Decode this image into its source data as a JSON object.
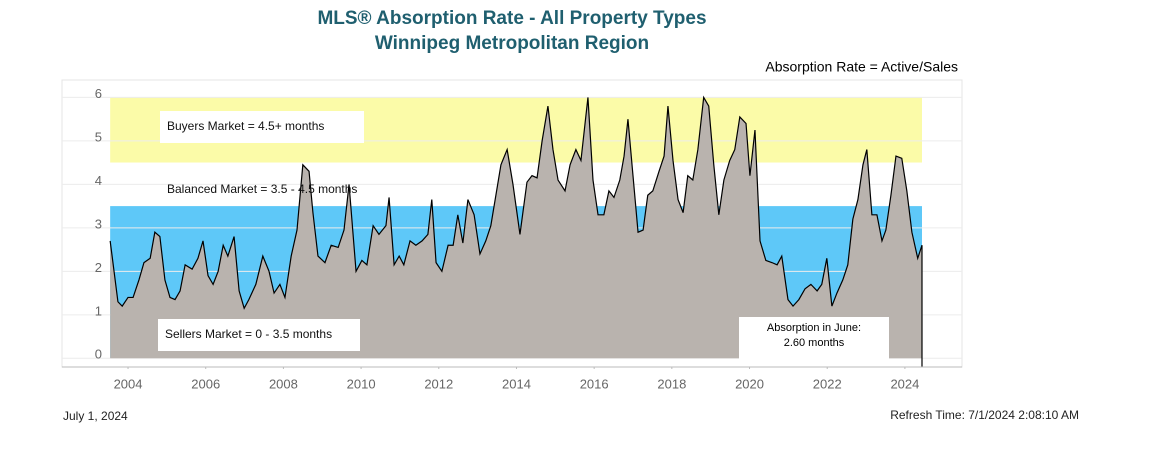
{
  "chart_data": {
    "type": "area",
    "title": "MLS® Absorption Rate - All Property Types",
    "subtitle": "Winnipeg Metropolitan Region",
    "note": "Absorption Rate = Active/Sales",
    "date": "July 1, 2024",
    "refresh": "Refresh Time: 7/1/2024 2:08:10 AM",
    "color": "#b9b3ae",
    "line_color": "#000000",
    "xlim": [
      2002.3,
      2025.47
    ],
    "xticks": [
      2004,
      2006,
      2008,
      2010,
      2012,
      2014,
      2016,
      2018,
      2020,
      2022,
      2024
    ],
    "ylim": [
      -0.2,
      6.4
    ],
    "yticks": [
      0,
      1,
      2,
      3,
      4,
      5,
      6
    ],
    "grid": true,
    "bands": [
      {
        "label": "Buyers Market = 4.5+ months",
        "from": 4.5,
        "to": 6,
        "color": "#fbfba8"
      },
      {
        "label": "Balanced Market = 3.5 - 4.5 months",
        "from": 3.5,
        "to": 4.5,
        "color": "#ffffff"
      },
      {
        "label": "Sellers Market = 0 - 3.5 months",
        "from": 0,
        "to": 3.5,
        "color": "#5ec8f8"
      }
    ],
    "callout": [
      "Absorption in June:",
      "2.60 months"
    ],
    "x": [
      2003.54,
      2003.74,
      2003.85,
      2004.0,
      2004.13,
      2004.28,
      2004.41,
      2004.57,
      2004.69,
      2004.82,
      2004.95,
      2005.08,
      2005.21,
      2005.34,
      2005.47,
      2005.65,
      2005.8,
      2005.93,
      2006.06,
      2006.19,
      2006.32,
      2006.45,
      2006.57,
      2006.73,
      2006.86,
      2006.99,
      2007.11,
      2007.29,
      2007.47,
      2007.63,
      2007.76,
      2007.91,
      2008.04,
      2008.2,
      2008.35,
      2008.5,
      2008.66,
      2008.76,
      2008.89,
      2009.07,
      2009.23,
      2009.41,
      2009.56,
      2009.69,
      2009.87,
      2010.02,
      2010.15,
      2010.31,
      2010.46,
      2010.64,
      2010.72,
      2010.85,
      2010.98,
      2011.1,
      2011.26,
      2011.41,
      2011.57,
      2011.72,
      2011.82,
      2011.93,
      2012.08,
      2012.24,
      2012.37,
      2012.49,
      2012.62,
      2012.75,
      2012.91,
      2013.06,
      2013.21,
      2013.34,
      2013.47,
      2013.6,
      2013.76,
      2013.91,
      2014.09,
      2014.27,
      2014.4,
      2014.53,
      2014.66,
      2014.81,
      2014.94,
      2015.07,
      2015.25,
      2015.38,
      2015.53,
      2015.66,
      2015.84,
      2015.97,
      2016.1,
      2016.25,
      2016.38,
      2016.51,
      2016.66,
      2016.77,
      2016.87,
      2017.0,
      2017.13,
      2017.26,
      2017.38,
      2017.51,
      2017.67,
      2017.8,
      2017.9,
      2018.03,
      2018.16,
      2018.29,
      2018.41,
      2018.54,
      2018.67,
      2018.82,
      2018.95,
      2019.08,
      2019.21,
      2019.34,
      2019.49,
      2019.62,
      2019.75,
      2019.91,
      2020.01,
      2020.14,
      2020.27,
      2020.42,
      2020.58,
      2020.71,
      2020.83,
      2020.99,
      2021.12,
      2021.27,
      2021.43,
      2021.58,
      2021.74,
      2021.86,
      2021.99,
      2022.12,
      2022.25,
      2022.4,
      2022.53,
      2022.66,
      2022.79,
      2022.92,
      2023.02,
      2023.15,
      2023.28,
      2023.41,
      2023.51,
      2023.64,
      2023.77,
      2023.92,
      2024.05,
      2024.18,
      2024.33,
      2024.44
    ],
    "values": [
      2.7,
      1.3,
      1.2,
      1.4,
      1.4,
      1.8,
      2.2,
      2.3,
      2.9,
      2.8,
      1.8,
      1.4,
      1.35,
      1.55,
      2.15,
      2.05,
      2.3,
      2.7,
      1.9,
      1.7,
      2.0,
      2.6,
      2.35,
      2.8,
      1.55,
      1.15,
      1.35,
      1.7,
      2.35,
      2.0,
      1.5,
      1.7,
      1.4,
      2.35,
      2.95,
      4.45,
      4.3,
      3.35,
      2.35,
      2.2,
      2.6,
      2.55,
      2.95,
      4.0,
      2.0,
      2.25,
      2.15,
      3.05,
      2.85,
      3.05,
      3.7,
      2.15,
      2.35,
      2.15,
      2.7,
      2.6,
      2.7,
      2.85,
      3.65,
      2.2,
      2.0,
      2.6,
      2.6,
      3.3,
      2.65,
      3.65,
      3.3,
      2.4,
      2.7,
      3.05,
      3.75,
      4.45,
      4.8,
      4.0,
      2.85,
      4.05,
      4.2,
      4.15,
      5.0,
      5.8,
      4.8,
      4.1,
      3.85,
      4.45,
      4.8,
      4.55,
      6.0,
      4.1,
      3.3,
      3.3,
      3.85,
      3.7,
      4.1,
      4.65,
      5.5,
      4.2,
      2.9,
      2.95,
      3.75,
      3.85,
      4.3,
      4.65,
      5.8,
      4.55,
      3.65,
      3.35,
      4.2,
      4.1,
      4.8,
      6.0,
      5.8,
      4.45,
      3.3,
      4.1,
      4.55,
      4.8,
      5.55,
      5.4,
      4.2,
      5.25,
      2.7,
      2.25,
      2.2,
      2.15,
      2.35,
      1.35,
      1.2,
      1.35,
      1.6,
      1.7,
      1.55,
      1.7,
      2.3,
      1.2,
      1.5,
      1.8,
      2.15,
      3.2,
      3.65,
      4.45,
      4.8,
      3.3,
      3.3,
      2.7,
      2.95,
      3.75,
      4.65,
      4.6,
      3.85,
      2.9,
      2.3,
      2.6
    ]
  }
}
